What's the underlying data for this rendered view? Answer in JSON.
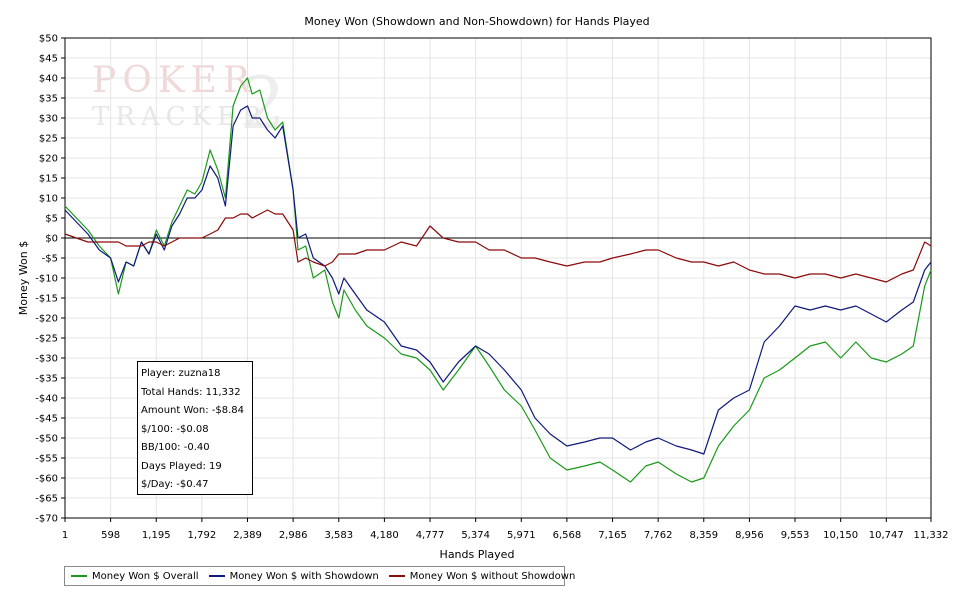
{
  "chart_data": {
    "type": "line",
    "title": "Money Won (Showdown and Non-Showdown) for Hands Played",
    "xlabel": "Hands Played",
    "ylabel": "Money Won $",
    "xlim": [
      1,
      11332
    ],
    "ylim": [
      -70,
      50
    ],
    "y_ticks": [
      50,
      45,
      40,
      35,
      30,
      25,
      20,
      15,
      10,
      5,
      0,
      -5,
      -10,
      -15,
      -20,
      -25,
      -30,
      -35,
      -40,
      -45,
      -50,
      -55,
      -60,
      -65,
      -70
    ],
    "y_tick_labels": [
      "$50",
      "$45",
      "$40",
      "$35",
      "$30",
      "$25",
      "$20",
      "$15",
      "$10",
      "$5",
      "$0",
      "-$5",
      "-$10",
      "-$15",
      "-$20",
      "-$25",
      "-$30",
      "-$35",
      "-$40",
      "-$45",
      "-$50",
      "-$55",
      "-$60",
      "-$65",
      "-$70"
    ],
    "x_ticks": [
      1,
      598,
      1195,
      1792,
      2389,
      2986,
      3583,
      4180,
      4777,
      5374,
      5971,
      6568,
      7165,
      7762,
      8359,
      8956,
      9553,
      10150,
      10747,
      11332
    ],
    "x_tick_labels": [
      "1",
      "598",
      "1,195",
      "1,792",
      "2,389",
      "2,986",
      "3,583",
      "4,180",
      "4,777",
      "5,374",
      "5,971",
      "6,568",
      "7,165",
      "7,762",
      "8,359",
      "8,956",
      "9,553",
      "10,150",
      "10,747",
      "11,332"
    ],
    "grid": true,
    "legend_position": "bottom-left",
    "series": [
      {
        "name": "Money Won $ Overall",
        "color": "#1a9a1a",
        "x": [
          1,
          150,
          300,
          450,
          598,
          700,
          800,
          900,
          1000,
          1100,
          1195,
          1300,
          1400,
          1500,
          1600,
          1700,
          1792,
          1900,
          2000,
          2100,
          2200,
          2300,
          2389,
          2450,
          2550,
          2650,
          2750,
          2850,
          2986,
          3050,
          3150,
          3250,
          3400,
          3500,
          3583,
          3650,
          3800,
          3950,
          4180,
          4400,
          4600,
          4777,
          4950,
          5150,
          5374,
          5550,
          5750,
          5971,
          6150,
          6350,
          6568,
          6800,
          7000,
          7165,
          7400,
          7600,
          7762,
          8000,
          8200,
          8359,
          8550,
          8750,
          8956,
          9150,
          9350,
          9553,
          9750,
          9950,
          10150,
          10350,
          10550,
          10747,
          10950,
          11100,
          11250,
          11332
        ],
        "values": [
          8,
          5,
          2,
          -2,
          -5,
          -14,
          -6,
          -7,
          -1,
          -4,
          2,
          -2,
          4,
          8,
          12,
          11,
          14,
          22,
          17,
          10,
          33,
          38,
          40,
          36,
          37,
          30,
          27,
          29,
          12,
          -3,
          -2,
          -10,
          -8,
          -16,
          -20,
          -13,
          -18,
          -22,
          -25,
          -29,
          -30,
          -33,
          -38,
          -33,
          -27,
          -32,
          -38,
          -42,
          -48,
          -55,
          -58,
          -57,
          -56,
          -58,
          -61,
          -57,
          -56,
          -59,
          -61,
          -60,
          -52,
          -47,
          -43,
          -35,
          -33,
          -30,
          -27,
          -26,
          -30,
          -26,
          -30,
          -31,
          -29,
          -27,
          -12,
          -8
        ]
      },
      {
        "name": "Money Won $ with Showdown",
        "color": "#101a7a",
        "x": [
          1,
          150,
          300,
          450,
          598,
          700,
          800,
          900,
          1000,
          1100,
          1195,
          1300,
          1400,
          1500,
          1600,
          1700,
          1792,
          1900,
          2000,
          2100,
          2200,
          2300,
          2389,
          2450,
          2550,
          2650,
          2750,
          2850,
          2986,
          3050,
          3150,
          3250,
          3400,
          3500,
          3583,
          3650,
          3800,
          3950,
          4180,
          4400,
          4600,
          4777,
          4950,
          5150,
          5374,
          5550,
          5750,
          5971,
          6150,
          6350,
          6568,
          6800,
          7000,
          7165,
          7400,
          7600,
          7762,
          8000,
          8200,
          8359,
          8550,
          8750,
          8956,
          9150,
          9350,
          9553,
          9750,
          9950,
          10150,
          10350,
          10550,
          10747,
          10950,
          11100,
          11250,
          11332
        ],
        "values": [
          7,
          4,
          1,
          -3,
          -5,
          -11,
          -6,
          -7,
          -1,
          -4,
          1,
          -3,
          3,
          6,
          10,
          10,
          12,
          18,
          15,
          8,
          28,
          32,
          33,
          30,
          30,
          27,
          25,
          28,
          12,
          0,
          1,
          -5,
          -7,
          -10,
          -14,
          -10,
          -14,
          -18,
          -21,
          -27,
          -28,
          -31,
          -36,
          -31,
          -27,
          -29,
          -33,
          -38,
          -45,
          -49,
          -52,
          -51,
          -50,
          -50,
          -53,
          -51,
          -50,
          -52,
          -53,
          -54,
          -43,
          -40,
          -38,
          -26,
          -22,
          -17,
          -18,
          -17,
          -18,
          -17,
          -19,
          -21,
          -18,
          -16,
          -8,
          -6
        ]
      },
      {
        "name": "Money Won $ without Showdown",
        "color": "#8b0a0a",
        "x": [
          1,
          150,
          300,
          450,
          598,
          700,
          800,
          900,
          1000,
          1100,
          1195,
          1300,
          1400,
          1500,
          1600,
          1700,
          1792,
          1900,
          2000,
          2100,
          2200,
          2300,
          2389,
          2450,
          2550,
          2650,
          2750,
          2850,
          2986,
          3050,
          3150,
          3250,
          3400,
          3500,
          3583,
          3650,
          3800,
          3950,
          4180,
          4400,
          4600,
          4777,
          4950,
          5150,
          5374,
          5550,
          5750,
          5971,
          6150,
          6350,
          6568,
          6800,
          7000,
          7165,
          7400,
          7600,
          7762,
          8000,
          8200,
          8359,
          8550,
          8750,
          8956,
          9150,
          9350,
          9553,
          9750,
          9950,
          10150,
          10350,
          10550,
          10747,
          10950,
          11100,
          11250,
          11332
        ],
        "values": [
          1,
          0,
          -1,
          -1,
          -1,
          -1,
          -2,
          -2,
          -2,
          -1,
          -1,
          -2,
          -1,
          0,
          0,
          0,
          0,
          1,
          2,
          5,
          5,
          6,
          6,
          5,
          6,
          7,
          6,
          6,
          2,
          -6,
          -5,
          -6,
          -7,
          -6,
          -4,
          -4,
          -4,
          -3,
          -3,
          -1,
          -2,
          3,
          0,
          -1,
          -1,
          -3,
          -3,
          -5,
          -5,
          -6,
          -7,
          -6,
          -6,
          -5,
          -4,
          -3,
          -3,
          -5,
          -6,
          -6,
          -7,
          -6,
          -8,
          -9,
          -9,
          -10,
          -9,
          -9,
          -10,
          -9,
          -10,
          -11,
          -9,
          -8,
          -1,
          -2
        ]
      }
    ]
  },
  "watermark": {
    "line1": "POKER",
    "line2": "TRACKER",
    "numeral": "2"
  },
  "stats": {
    "player": "Player: zuzna18",
    "total_hands": "Total Hands: 11,332",
    "amount_won": "Amount Won: -$8.84",
    "per_100": "$/100: -$0.08",
    "bb_100": "BB/100: -0.40",
    "days_played": "Days Played: 19",
    "per_day": "$/Day: -$0.47"
  },
  "legend": {
    "overall": "Money Won $ Overall",
    "with_showdown": "Money Won $ with Showdown",
    "without_showdown": "Money Won $ without Showdown",
    "overall_color": "#1a9a1a",
    "with_showdown_color": "#101a7a",
    "without_showdown_color": "#8b0a0a"
  }
}
